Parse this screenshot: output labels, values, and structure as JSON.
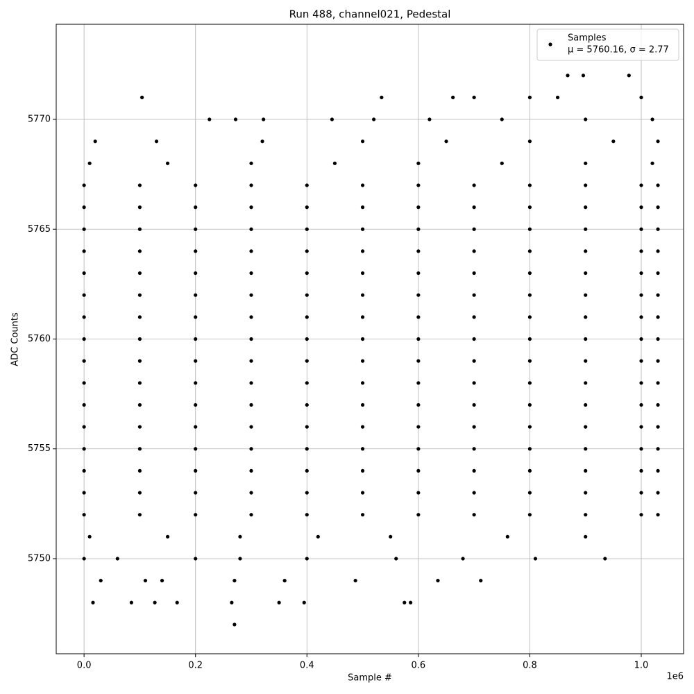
{
  "chart_data": {
    "type": "scatter",
    "title": "Run 488, channel021, Pedestal",
    "x_label": "Sample #",
    "y_label": "ADC Counts",
    "x_offset_label": "1e6",
    "legend_position": "upper right",
    "legend_note": "μ = 5760.16, σ = 2.77",
    "grid": true,
    "xlim": [
      -50000,
      1076000
    ],
    "ylim": [
      5745.67,
      5774.33
    ],
    "xticks": [
      {
        "value": 0,
        "label": "0.0"
      },
      {
        "value": 200000,
        "label": "0.2"
      },
      {
        "value": 400000,
        "label": "0.4"
      },
      {
        "value": 600000,
        "label": "0.6"
      },
      {
        "value": 800000,
        "label": "0.8"
      },
      {
        "value": 1000000,
        "label": "1.0"
      }
    ],
    "yticks": [
      5750,
      5755,
      5760,
      5765,
      5770
    ],
    "series": [
      {
        "name": "Samples",
        "color": "#000000",
        "x": [
          0,
          100000,
          200000,
          300000,
          400000,
          500000,
          600000,
          700000,
          800000,
          900000,
          1000000,
          1030000,
          0,
          100000,
          200000,
          300000,
          400000,
          500000,
          600000,
          700000,
          800000,
          900000,
          1000000,
          1030000,
          0,
          100000,
          200000,
          300000,
          400000,
          500000,
          600000,
          700000,
          800000,
          900000,
          1000000,
          1030000,
          0,
          100000,
          200000,
          300000,
          400000,
          500000,
          600000,
          700000,
          800000,
          900000,
          1000000,
          1030000,
          0,
          100000,
          200000,
          300000,
          400000,
          500000,
          600000,
          700000,
          800000,
          900000,
          1000000,
          1030000,
          0,
          100000,
          200000,
          300000,
          400000,
          500000,
          600000,
          700000,
          800000,
          900000,
          1000000,
          1030000,
          0,
          100000,
          200000,
          300000,
          400000,
          500000,
          600000,
          700000,
          800000,
          900000,
          1000000,
          1030000,
          0,
          100000,
          200000,
          300000,
          400000,
          500000,
          600000,
          700000,
          800000,
          900000,
          1000000,
          1030000,
          0,
          100000,
          200000,
          300000,
          400000,
          500000,
          600000,
          700000,
          800000,
          900000,
          1000000,
          1030000,
          0,
          100000,
          200000,
          300000,
          400000,
          500000,
          600000,
          700000,
          800000,
          900000,
          1000000,
          1030000,
          0,
          100000,
          200000,
          300000,
          400000,
          500000,
          600000,
          700000,
          800000,
          900000,
          1000000,
          1030000,
          0,
          100000,
          200000,
          300000,
          400000,
          500000,
          600000,
          700000,
          800000,
          900000,
          1000000,
          1030000,
          0,
          100000,
          200000,
          300000,
          400000,
          500000,
          600000,
          700000,
          800000,
          900000,
          1000000,
          1030000,
          0,
          100000,
          200000,
          300000,
          400000,
          500000,
          600000,
          700000,
          800000,
          900000,
          1000000,
          1030000,
          0,
          100000,
          200000,
          300000,
          400000,
          500000,
          600000,
          700000,
          800000,
          900000,
          1000000,
          1030000,
          0,
          100000,
          200000,
          300000,
          400000,
          500000,
          600000,
          700000,
          800000,
          900000,
          1000000,
          1030000,
          10000,
          150000,
          300000,
          450000,
          600000,
          750000,
          900000,
          1020000,
          20000,
          130000,
          320000,
          500000,
          650000,
          800000,
          950000,
          1030000,
          10000,
          150000,
          280000,
          420000,
          550000,
          760000,
          900000,
          225000,
          272000,
          322000,
          445000,
          520000,
          620000,
          750000,
          900000,
          1020000,
          0,
          60000,
          200000,
          280000,
          400000,
          560000,
          680000,
          810000,
          935000,
          104000,
          534000,
          662000,
          700000,
          800000,
          850000,
          1000000,
          868000,
          896000,
          978000,
          30000,
          110000,
          140000,
          270000,
          360000,
          487000,
          635000,
          712000,
          16000,
          85000,
          127000,
          167000,
          265000,
          350000,
          395000,
          575000,
          586000,
          270000
        ],
        "values": [
          5752,
          5752,
          5752,
          5752,
          5752,
          5752,
          5752,
          5752,
          5752,
          5752,
          5752,
          5752,
          5753,
          5753,
          5753,
          5753,
          5753,
          5753,
          5753,
          5753,
          5753,
          5753,
          5753,
          5753,
          5754,
          5754,
          5754,
          5754,
          5754,
          5754,
          5754,
          5754,
          5754,
          5754,
          5754,
          5754,
          5755,
          5755,
          5755,
          5755,
          5755,
          5755,
          5755,
          5755,
          5755,
          5755,
          5755,
          5755,
          5756,
          5756,
          5756,
          5756,
          5756,
          5756,
          5756,
          5756,
          5756,
          5756,
          5756,
          5756,
          5757,
          5757,
          5757,
          5757,
          5757,
          5757,
          5757,
          5757,
          5757,
          5757,
          5757,
          5757,
          5758,
          5758,
          5758,
          5758,
          5758,
          5758,
          5758,
          5758,
          5758,
          5758,
          5758,
          5758,
          5759,
          5759,
          5759,
          5759,
          5759,
          5759,
          5759,
          5759,
          5759,
          5759,
          5759,
          5759,
          5760,
          5760,
          5760,
          5760,
          5760,
          5760,
          5760,
          5760,
          5760,
          5760,
          5760,
          5760,
          5761,
          5761,
          5761,
          5761,
          5761,
          5761,
          5761,
          5761,
          5761,
          5761,
          5761,
          5761,
          5762,
          5762,
          5762,
          5762,
          5762,
          5762,
          5762,
          5762,
          5762,
          5762,
          5762,
          5762,
          5763,
          5763,
          5763,
          5763,
          5763,
          5763,
          5763,
          5763,
          5763,
          5763,
          5763,
          5763,
          5764,
          5764,
          5764,
          5764,
          5764,
          5764,
          5764,
          5764,
          5764,
          5764,
          5764,
          5764,
          5765,
          5765,
          5765,
          5765,
          5765,
          5765,
          5765,
          5765,
          5765,
          5765,
          5765,
          5765,
          5766,
          5766,
          5766,
          5766,
          5766,
          5766,
          5766,
          5766,
          5766,
          5766,
          5766,
          5766,
          5767,
          5767,
          5767,
          5767,
          5767,
          5767,
          5767,
          5767,
          5767,
          5767,
          5767,
          5767,
          5768,
          5768,
          5768,
          5768,
          5768,
          5768,
          5768,
          5768,
          5769,
          5769,
          5769,
          5769,
          5769,
          5769,
          5769,
          5769,
          5751,
          5751,
          5751,
          5751,
          5751,
          5751,
          5751,
          5770,
          5770,
          5770,
          5770,
          5770,
          5770,
          5770,
          5770,
          5770,
          5750,
          5750,
          5750,
          5750,
          5750,
          5750,
          5750,
          5750,
          5750,
          5771,
          5771,
          5771,
          5771,
          5771,
          5771,
          5771,
          5772,
          5772,
          5772,
          5749,
          5749,
          5749,
          5749,
          5749,
          5749,
          5749,
          5749,
          5748,
          5748,
          5748,
          5748,
          5748,
          5748,
          5748,
          5748,
          5748,
          5747
        ]
      }
    ]
  }
}
